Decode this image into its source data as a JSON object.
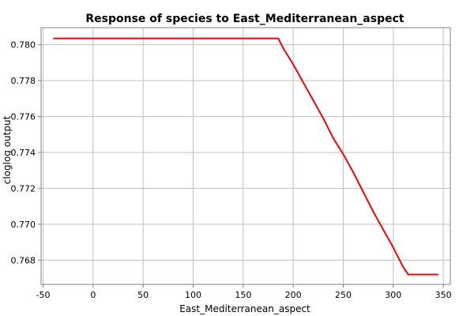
{
  "chart_data": {
    "type": "line",
    "title": "Response of species to East_Mediterranean_aspect",
    "xlabel": "East_Mediterranean_aspect",
    "ylabel": "cloglog output",
    "xlim": [
      -52,
      357
    ],
    "ylim": [
      0.76665,
      0.78095
    ],
    "x_ticks": [
      -50,
      0,
      50,
      100,
      150,
      200,
      250,
      300,
      350
    ],
    "y_ticks": [
      0.768,
      0.77,
      0.772,
      0.774,
      0.776,
      0.778,
      0.78
    ],
    "y_tick_labels": [
      "0.768",
      "0.770",
      "0.772",
      "0.774",
      "0.776",
      "0.778",
      "0.780"
    ],
    "grid": true,
    "series": [
      {
        "color": "#ff0000",
        "x": [
          -40,
          0,
          50,
          100,
          150,
          185,
          190,
          200,
          210,
          220,
          230,
          240,
          250,
          260,
          270,
          280,
          290,
          300,
          310,
          315,
          330,
          345
        ],
        "y": [
          0.78035,
          0.78035,
          0.78035,
          0.78035,
          0.78035,
          0.78035,
          0.7798,
          0.7789,
          0.7779,
          0.7769,
          0.7759,
          0.7748,
          0.7739,
          0.7729,
          0.7718,
          0.7707,
          0.7697,
          0.7687,
          0.7676,
          0.7672,
          0.7672,
          0.7672
        ]
      }
    ]
  }
}
